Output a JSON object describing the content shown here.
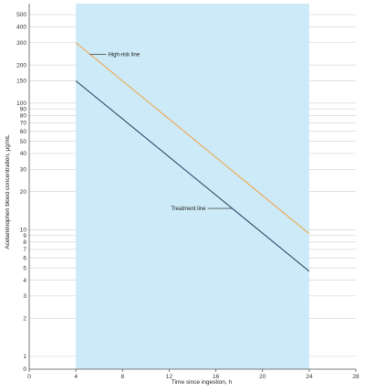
{
  "chart_data": {
    "type": "line",
    "xlabel": "Time since ingestion, h",
    "ylabel": "Acetaminophen blood concentration, μg/mL",
    "xlim": [
      0,
      28
    ],
    "ylim": [
      0,
      500
    ],
    "x_ticks": [
      0,
      4,
      8,
      12,
      16,
      20,
      24,
      28
    ],
    "y_ticks": [
      1,
      2,
      3,
      4,
      5,
      6,
      7,
      8,
      9,
      10,
      20,
      30,
      40,
      50,
      60,
      70,
      80,
      90,
      100,
      150,
      200,
      300,
      400,
      500
    ],
    "y_tick_labels": [
      "1",
      "2",
      "3",
      "4",
      "5",
      "6",
      "7",
      "8",
      "9",
      "10",
      "20",
      "30",
      "40",
      "50",
      "60",
      "70",
      "80",
      "90",
      "100",
      "150",
      "200",
      "300",
      "400",
      "500"
    ],
    "y_zero_label": "0",
    "y_scale": "log",
    "grid": "horizontal",
    "series": [
      {
        "name": "High-risk line",
        "x": [
          4,
          24
        ],
        "y": [
          300,
          9.3
        ],
        "color": "#f0a13c"
      },
      {
        "name": "Treatment line",
        "x": [
          4,
          24
        ],
        "y": [
          150,
          4.7
        ],
        "color": "#1e3a5c"
      }
    ],
    "shaded_region": {
      "x": [
        4,
        24
      ],
      "color": "#cdeaf8"
    },
    "annotations": [
      {
        "text": "High-risk line",
        "target_series": 0
      },
      {
        "text": "Treatment line",
        "target_series": 1
      }
    ]
  }
}
